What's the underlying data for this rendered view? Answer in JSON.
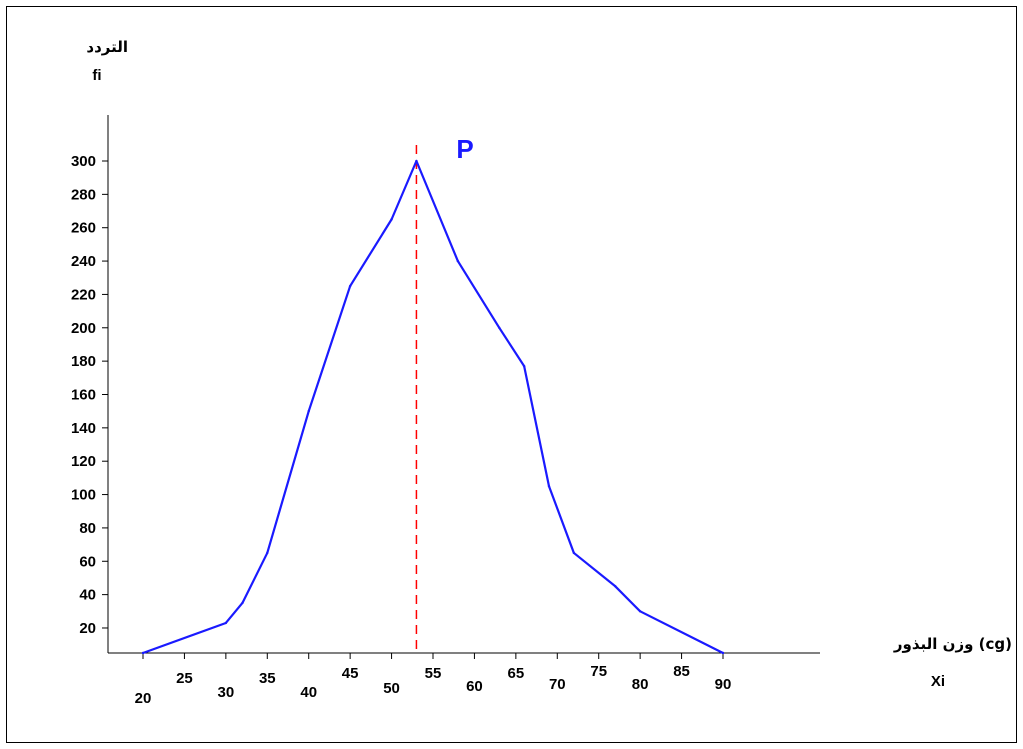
{
  "chart_data": {
    "type": "line",
    "title": "",
    "ylabel": "التردد",
    "ylabel_symbol": "fi",
    "xlabel": "وزن البذور  (cg)",
    "xlabel_symbol": "Xi",
    "annotation": "P",
    "x_ticks": [
      20,
      25,
      30,
      35,
      40,
      45,
      50,
      55,
      60,
      65,
      70,
      75,
      80,
      85,
      90
    ],
    "y_ticks": [
      20,
      40,
      60,
      80,
      100,
      120,
      140,
      160,
      180,
      200,
      220,
      240,
      260,
      280,
      300
    ],
    "xlim": [
      18,
      93
    ],
    "ylim": [
      5,
      305
    ],
    "series": [
      {
        "color": "#1a1aff",
        "x": [
          20,
          30,
          32,
          35,
          40,
          45,
          50,
          53,
          58,
          63,
          66,
          69,
          72,
          77,
          80,
          90
        ],
        "y": [
          5,
          23,
          35,
          65,
          150,
          225,
          265,
          300,
          240,
          200,
          177,
          105,
          65,
          45,
          30,
          5
        ]
      }
    ],
    "mode_line": {
      "x": 53,
      "color": "#ff0000",
      "style": "dashed"
    },
    "colors": {
      "line": "#1a1aff",
      "mode_line": "#ff0000",
      "axis": "#000000"
    }
  }
}
